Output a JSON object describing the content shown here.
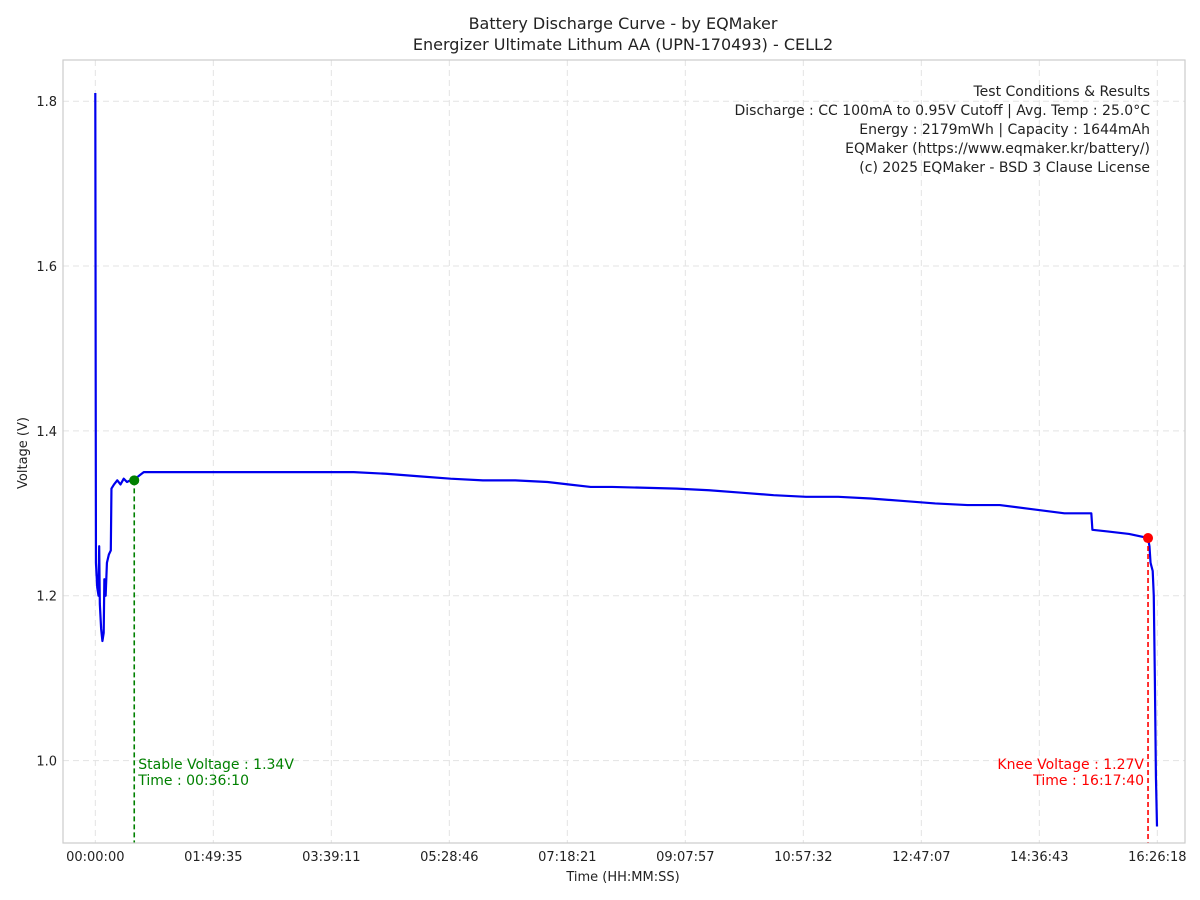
{
  "chart_data": {
    "type": "line",
    "title": "Battery Discharge Curve - by EQMaker",
    "subtitle": "Energizer Ultimate Lithum AA (UPN-170493) - CELL2",
    "xlabel": "Time (HH:MM:SS)",
    "ylabel": "Voltage (V)",
    "xlim": [
      "-00:30:00",
      "16:52:00"
    ],
    "ylim": [
      0.9,
      1.85
    ],
    "grid": true,
    "x_ticks": [
      "00:00:00",
      "01:49:35",
      "03:39:11",
      "05:28:46",
      "07:18:21",
      "09:07:57",
      "10:57:32",
      "12:47:07",
      "14:36:43",
      "16:26:18"
    ],
    "y_ticks": [
      "1.0",
      "1.2",
      "1.4",
      "1.6",
      "1.8"
    ],
    "info_box": {
      "position": "top-right",
      "lines": [
        "Test Conditions & Results",
        "Discharge : CC 100mA to 0.95V Cutoff | Avg. Temp : 25.0°C",
        "Energy : 2179mWh | Capacity : 1644mAh",
        "EQMaker (https://www.eqmaker.kr/battery/)",
        "(c) 2025 EQMaker - BSD 3 Clause License"
      ]
    },
    "series": [
      {
        "color": "#0000ee",
        "points": [
          [
            "00:00:00",
            1.81
          ],
          [
            "00:00:36",
            1.24
          ],
          [
            "00:01:48",
            1.21
          ],
          [
            "00:03:00",
            1.2
          ],
          [
            "00:03:36",
            1.26
          ],
          [
            "00:04:12",
            1.19
          ],
          [
            "00:05:24",
            1.16
          ],
          [
            "00:06:36",
            1.145
          ],
          [
            "00:07:48",
            1.155
          ],
          [
            "00:08:24",
            1.22
          ],
          [
            "00:09:36",
            1.2
          ],
          [
            "00:10:48",
            1.24
          ],
          [
            "00:12:36",
            1.25
          ],
          [
            "00:14:24",
            1.255
          ],
          [
            "00:15:00",
            1.33
          ],
          [
            "00:17:24",
            1.335
          ],
          [
            "00:20:24",
            1.34
          ],
          [
            "00:23:24",
            1.335
          ],
          [
            "00:26:24",
            1.342
          ],
          [
            "00:29:24",
            1.338
          ],
          [
            "00:32:24",
            1.34
          ],
          [
            "00:36:10",
            1.34
          ],
          [
            "00:40:00",
            1.345
          ],
          [
            "00:45:00",
            1.35
          ],
          [
            "01:00:00",
            1.35
          ],
          [
            "01:30:00",
            1.35
          ],
          [
            "02:00:00",
            1.35
          ],
          [
            "02:30:00",
            1.35
          ],
          [
            "03:00:00",
            1.35
          ],
          [
            "03:30:00",
            1.35
          ],
          [
            "04:00:00",
            1.35
          ],
          [
            "04:30:00",
            1.348
          ],
          [
            "05:00:00",
            1.345
          ],
          [
            "05:30:00",
            1.342
          ],
          [
            "06:00:00",
            1.34
          ],
          [
            "06:30:00",
            1.34
          ],
          [
            "07:00:00",
            1.338
          ],
          [
            "07:20:00",
            1.335
          ],
          [
            "07:40:00",
            1.332
          ],
          [
            "08:00:00",
            1.332
          ],
          [
            "08:30:00",
            1.331
          ],
          [
            "09:00:00",
            1.33
          ],
          [
            "09:30:00",
            1.328
          ],
          [
            "10:00:00",
            1.325
          ],
          [
            "10:30:00",
            1.322
          ],
          [
            "11:00:00",
            1.32
          ],
          [
            "11:30:00",
            1.32
          ],
          [
            "12:00:00",
            1.318
          ],
          [
            "12:30:00",
            1.315
          ],
          [
            "13:00:00",
            1.312
          ],
          [
            "13:30:00",
            1.31
          ],
          [
            "14:00:00",
            1.31
          ],
          [
            "14:30:00",
            1.305
          ],
          [
            "15:00:00",
            1.3
          ],
          [
            "15:25:00",
            1.3
          ],
          [
            "15:26:00",
            1.28
          ],
          [
            "15:40:00",
            1.278
          ],
          [
            "16:00:00",
            1.275
          ],
          [
            "16:17:40",
            1.27
          ],
          [
            "16:19:00",
            1.26
          ],
          [
            "16:20:00",
            1.24
          ],
          [
            "16:22:00",
            1.23
          ],
          [
            "16:23:00",
            1.2
          ],
          [
            "16:24:00",
            1.1
          ],
          [
            "16:25:00",
            0.98
          ],
          [
            "16:26:00",
            0.92
          ]
        ]
      }
    ],
    "annotations": [
      {
        "label_lines": [
          "Stable Voltage : 1.34V",
          "Time : 00:36:10"
        ],
        "x": "00:36:10",
        "y": 1.34,
        "color": "#008000",
        "align": "left"
      },
      {
        "label_lines": [
          "Knee Voltage : 1.27V",
          "Time : 16:17:40"
        ],
        "x": "16:17:40",
        "y": 1.27,
        "color": "#ff0000",
        "align": "right"
      }
    ]
  }
}
